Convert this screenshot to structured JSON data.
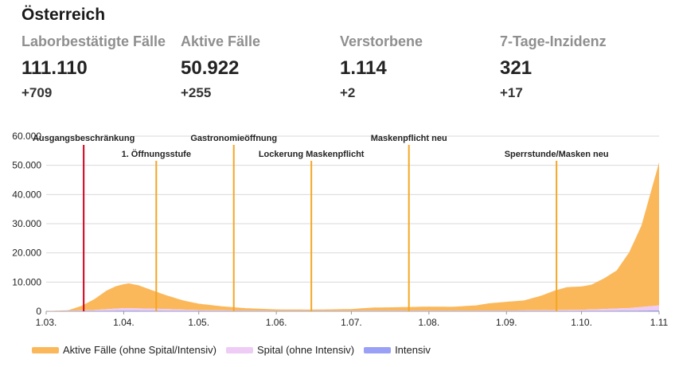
{
  "header": {
    "title": "Österreich"
  },
  "stats": [
    {
      "label": "Laborbestätigte Fälle",
      "value": "111.110",
      "change": "+709"
    },
    {
      "label": "Aktive Fälle",
      "value": "50.922",
      "change": "+255"
    },
    {
      "label": "Verstorbene",
      "value": "1.114",
      "change": "+2"
    },
    {
      "label": "7-Tage-Inzidenz",
      "value": "321",
      "change": "+17"
    }
  ],
  "colors": {
    "active": "#fbb85a",
    "hospital": "#eeccf5",
    "icu": "#9aa0f5",
    "event_line": "#f5a623",
    "lockdown_line": "#d0021b",
    "grid": "#d9d9d9"
  },
  "chart_data": {
    "type": "area",
    "stacked": true,
    "x_ticks": [
      "1.03.",
      "1.04.",
      "1.05.",
      "1.06.",
      "1.07.",
      "1.08.",
      "1.09.",
      "1.10.",
      "1.11"
    ],
    "y_ticks": [
      "0",
      "10.000",
      "20.000",
      "30.000",
      "40.000",
      "50.000",
      "60.000"
    ],
    "ylim": [
      0,
      60000
    ],
    "grid": true,
    "legend_position": "bottom",
    "series": [
      {
        "name": "Aktive Fälle (ohne Spital/Intensiv)",
        "color_key": "active",
        "points": [
          [
            "1.03.",
            0
          ],
          [
            "10.03.",
            200
          ],
          [
            "15.03.",
            1500
          ],
          [
            "20.03.",
            3600
          ],
          [
            "25.03.",
            6300
          ],
          [
            "29.03.",
            7700
          ],
          [
            "3.04.",
            8500
          ],
          [
            "7.04.",
            7900
          ],
          [
            "12.04.",
            6400
          ],
          [
            "18.04.",
            4700
          ],
          [
            "25.04.",
            3100
          ],
          [
            "1.05.",
            2200
          ],
          [
            "10.05.",
            1400
          ],
          [
            "20.05.",
            800
          ],
          [
            "1.06.",
            500
          ],
          [
            "15.06.",
            400
          ],
          [
            "1.07.",
            600
          ],
          [
            "10.07.",
            1100
          ],
          [
            "20.07.",
            1200
          ],
          [
            "1.08.",
            1400
          ],
          [
            "10.08.",
            1300
          ],
          [
            "20.08.",
            1800
          ],
          [
            "25.08.",
            2500
          ],
          [
            "1.09.",
            3000
          ],
          [
            "8.09.",
            3400
          ],
          [
            "15.09.",
            5000
          ],
          [
            "20.09.",
            6600
          ],
          [
            "25.09.",
            7800
          ],
          [
            "1.10.",
            8000
          ],
          [
            "5.10.",
            8500
          ],
          [
            "10.10.",
            10500
          ],
          [
            "15.10.",
            13000
          ],
          [
            "20.10.",
            19000
          ],
          [
            "25.10.",
            28000
          ],
          [
            "29.10.",
            40000
          ],
          [
            "1.11",
            49000
          ]
        ]
      },
      {
        "name": "Spital (ohne Intensiv)",
        "color_key": "hospital",
        "points": [
          [
            "1.03.",
            0
          ],
          [
            "20.03.",
            300
          ],
          [
            "1.04.",
            900
          ],
          [
            "15.04.",
            700
          ],
          [
            "1.05.",
            300
          ],
          [
            "1.06.",
            100
          ],
          [
            "1.08.",
            150
          ],
          [
            "1.09.",
            200
          ],
          [
            "1.10.",
            400
          ],
          [
            "20.10.",
            900
          ],
          [
            "1.11",
            1700
          ]
        ]
      },
      {
        "name": "Intensiv",
        "color_key": "icu",
        "points": [
          [
            "1.03.",
            0
          ],
          [
            "1.04.",
            200
          ],
          [
            "1.05.",
            100
          ],
          [
            "1.06.",
            50
          ],
          [
            "1.09.",
            50
          ],
          [
            "1.10.",
            100
          ],
          [
            "20.10.",
            200
          ],
          [
            "1.11",
            300
          ]
        ]
      }
    ],
    "annotations": [
      {
        "date": "16.03.",
        "label": "Ausgangsbeschränkung",
        "color_key": "lockdown_line"
      },
      {
        "date": "14.04.",
        "label": "1. Öffnungsstufe",
        "color_key": "event_line"
      },
      {
        "date": "15.05.",
        "label": "Gastronomieöffnung",
        "color_key": "event_line"
      },
      {
        "date": "15.06.",
        "label": "Lockerung Maskenpflicht",
        "color_key": "event_line"
      },
      {
        "date": "24.07.",
        "label": "Maskenpflicht neu",
        "color_key": "event_line"
      },
      {
        "date": "21.09.",
        "label": "Sperrstunde/Masken neu",
        "color_key": "event_line"
      }
    ]
  }
}
